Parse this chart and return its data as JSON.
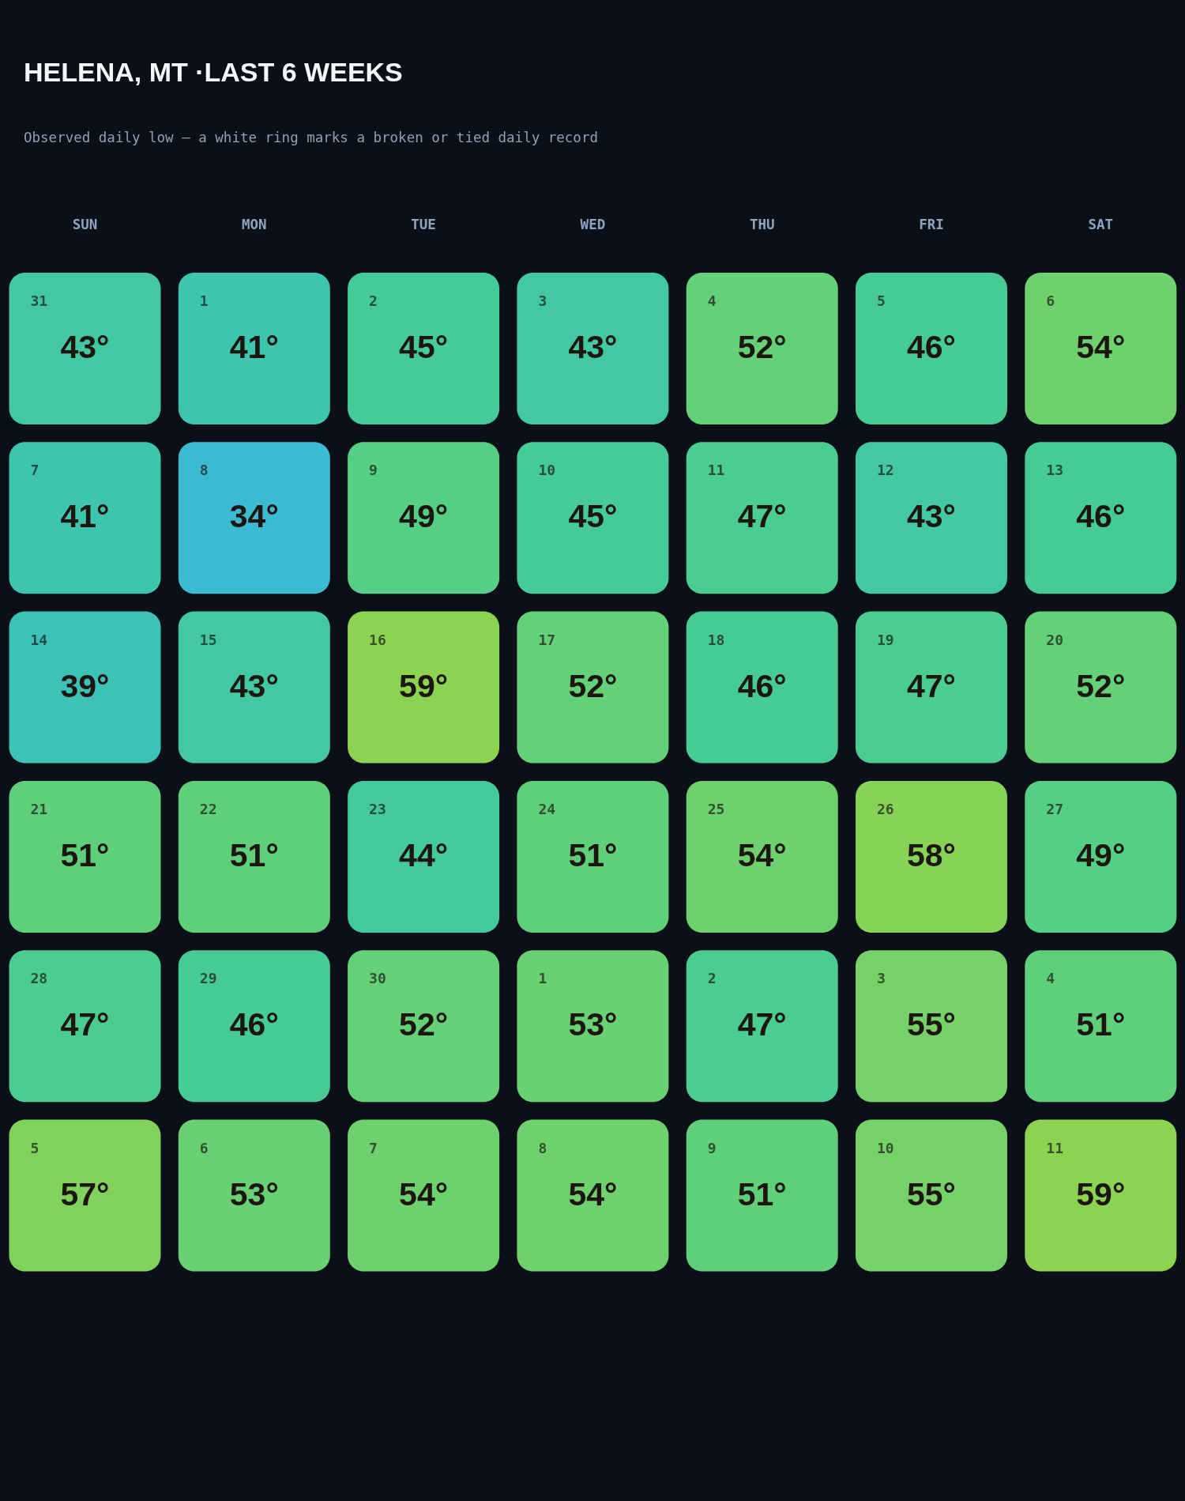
{
  "chart_data": {
    "type": "heatmap",
    "title": "HELENA, MT ·LAST 6 WEEKS",
    "subtitle": "Observed daily low — a white ring marks a broken or tied daily record",
    "categories": [
      "SUN",
      "MON",
      "TUE",
      "WED",
      "THU",
      "FRI",
      "SAT"
    ],
    "y_categories": [
      null,
      null,
      null,
      null,
      null,
      null
    ],
    "cells": [
      [
        43,
        41,
        45,
        43,
        52,
        46,
        54
      ],
      [
        41,
        34,
        49,
        45,
        47,
        43,
        46
      ],
      [
        39,
        43,
        59,
        52,
        46,
        47,
        52
      ],
      [
        51,
        51,
        44,
        51,
        54,
        58,
        49
      ],
      [
        47,
        46,
        52,
        53,
        47,
        55,
        51
      ],
      [
        57,
        53,
        54,
        54,
        51,
        55,
        59
      ]
    ],
    "cell_labels": [
      [
        "43°",
        "41°",
        "45°",
        "43°",
        "52°",
        "46°",
        "54°"
      ],
      [
        "41°",
        "34°",
        "49°",
        "45°",
        "47°",
        "43°",
        "46°"
      ],
      [
        "39°",
        "43°",
        "59°",
        "52°",
        "46°",
        "47°",
        "52°"
      ],
      [
        "51°",
        "51°",
        "44°",
        "51°",
        "54°",
        "58°",
        "49°"
      ],
      [
        "47°",
        "46°",
        "52°",
        "53°",
        "47°",
        "55°",
        "51°"
      ],
      [
        "57°",
        "53°",
        "54°",
        "54°",
        "51°",
        "55°",
        "59°"
      ]
    ],
    "annotations": [
      "31",
      "1",
      "2",
      "3",
      "4",
      "5",
      "6",
      "7",
      "8",
      "9",
      "10",
      "11",
      "12",
      "13",
      "14",
      "15",
      "16",
      "17",
      "18",
      "19",
      "20",
      "21",
      "22",
      "23",
      "24",
      "25",
      "26",
      "27",
      "28",
      "29",
      "30",
      "1",
      "2",
      "3",
      "4",
      "5",
      "6",
      "7",
      "8",
      "9",
      "10",
      "11"
    ],
    "colors": [
      "#3bbad1",
      "#3dc4b1",
      "#48cc92",
      "#68d074",
      "#8cd352"
    ]
  }
}
